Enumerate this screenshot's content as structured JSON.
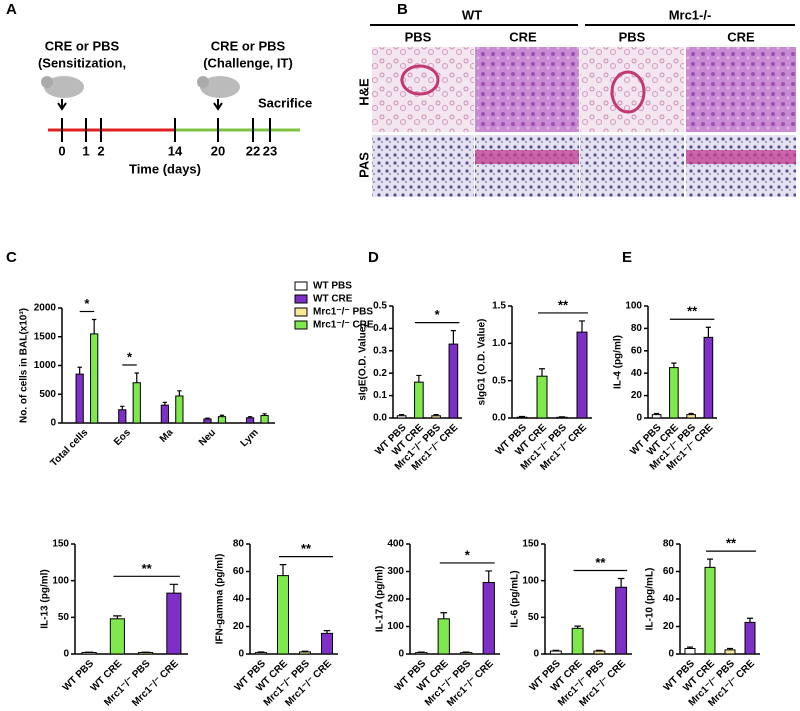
{
  "panel_labels": [
    "A",
    "B",
    "C",
    "D",
    "E"
  ],
  "timeline": {
    "labels": [
      "CRE or PBS",
      "(Sensitization,",
      "CRE or PBS",
      "(Challenge, IT)",
      "Sacrifice"
    ],
    "days": [
      0,
      1,
      2,
      14,
      20,
      22,
      23
    ],
    "xlabel": "Time (days)"
  },
  "histology": {
    "groups": [
      "WT",
      "Mrc1-/-"
    ],
    "treatments": [
      "PBS",
      "CRE",
      "PBS",
      "CRE"
    ],
    "stains": [
      "H&E",
      "PAS"
    ]
  },
  "chart_data": [
    {
      "type": "grouped-bar",
      "ylabel": "No. of cells in BAL(x10³)",
      "categories": [
        "Total cells",
        "Eos",
        "Ma",
        "Neu",
        "Lym"
      ],
      "series": [
        {
          "name": "WT PBS",
          "color": "#ffffff",
          "values": [
            0,
            0,
            0,
            0,
            0
          ],
          "errors": [
            0,
            0,
            0,
            0,
            0
          ]
        },
        {
          "name": "WT CRE",
          "color": "#7d2fc6",
          "values": [
            850,
            230,
            310,
            70,
            90
          ],
          "errors": [
            120,
            60,
            50,
            15,
            20
          ]
        },
        {
          "name": "Mrc1⁻/⁻ PBS",
          "color": "#f7e89a",
          "values": [
            0,
            0,
            0,
            0,
            0
          ],
          "errors": [
            0,
            0,
            0,
            0,
            0
          ]
        },
        {
          "name": "Mrc1⁻/⁻ CRE",
          "color": "#7ee84c",
          "values": [
            1550,
            700,
            470,
            110,
            130
          ],
          "errors": [
            250,
            170,
            90,
            25,
            30
          ]
        }
      ],
      "ylim": [
        0,
        2000
      ],
      "yticks": [
        0,
        500,
        1000,
        1500,
        2000
      ],
      "annotations": [
        "*",
        "*"
      ]
    },
    {
      "type": "bar",
      "ylabel": "sIgE(O.D. Value)",
      "categories": [
        "WT PBS",
        "WT CRE",
        "Mrc1⁻/⁻ PBS",
        "Mrc1⁻/⁻ CRE"
      ],
      "colors": [
        "#ffffff",
        "#7ee84c",
        "#f7e89a",
        "#7d2fc6"
      ],
      "values": [
        0.01,
        0.16,
        0.01,
        0.33
      ],
      "errors": [
        0.005,
        0.03,
        0.005,
        0.06
      ],
      "ylim": [
        0,
        0.5
      ],
      "yticks": [
        {
          "value": 0,
          "label": "0.0"
        },
        0.1,
        0.2,
        0.3,
        0.4,
        0.5
      ],
      "annotations": [
        "*"
      ]
    },
    {
      "type": "bar",
      "ylabel": "sIgG1 (O.D. Value)",
      "categories": [
        "WT PBS",
        "WT CRE",
        "Mrc1⁻/⁻ PBS",
        "Mrc1⁻/⁻ CRE"
      ],
      "colors": [
        "#ffffff",
        "#7ee84c",
        "#f7e89a",
        "#7d2fc6"
      ],
      "values": [
        0.01,
        0.56,
        0.01,
        1.15
      ],
      "errors": [
        0.01,
        0.1,
        0.005,
        0.15
      ],
      "ylim": [
        0,
        1.5
      ],
      "yticks": [
        {
          "value": 0,
          "label": "0.0"
        },
        0.5,
        {
          "value": 1,
          "label": "1.0"
        },
        1.5
      ],
      "annotations": [
        "**"
      ]
    },
    {
      "type": "bar",
      "ylabel": "IL-4 (pg/ml)",
      "categories": [
        "WT PBS",
        "WT CRE",
        "Mrc1⁻/⁻ PBS",
        "Mrc1⁻/⁻ CRE"
      ],
      "colors": [
        "#ffffff",
        "#7ee84c",
        "#f7e89a",
        "#7d2fc6"
      ],
      "values": [
        3,
        45,
        3,
        72
      ],
      "errors": [
        1,
        4,
        1,
        9
      ],
      "ylim": [
        0,
        100
      ],
      "yticks": [
        0,
        20,
        40,
        60,
        80,
        100
      ],
      "annotations": [
        "**"
      ]
    },
    {
      "type": "bar",
      "ylabel": "IL-13 (pg/ml)",
      "categories": [
        "WT PBS",
        "WT CRE",
        "Mrc1⁻/⁻ PBS",
        "Mrc1⁻/⁻ CRE"
      ],
      "colors": [
        "#ffffff",
        "#7ee84c",
        "#f7e89a",
        "#7d2fc6"
      ],
      "values": [
        2,
        48,
        2,
        83
      ],
      "errors": [
        0.5,
        4,
        0.5,
        12
      ],
      "ylim": [
        0,
        150
      ],
      "yticks": [
        0,
        50,
        100,
        150
      ],
      "annotations": [
        "**"
      ]
    },
    {
      "type": "bar",
      "ylabel": "IFN-gamma (pg/ml)",
      "categories": [
        "WT PBS",
        "WT CRE",
        "Mrc1⁻/⁻ PBS",
        "Mrc1⁻/⁻ CRE"
      ],
      "colors": [
        "#ffffff",
        "#7ee84c",
        "#f7e89a",
        "#7d2fc6"
      ],
      "values": [
        1,
        57,
        1.5,
        15
      ],
      "errors": [
        0.5,
        8,
        0.5,
        2
      ],
      "ylim": [
        0,
        80
      ],
      "yticks": [
        0,
        20,
        40,
        60,
        80
      ],
      "annotations": [
        "**"
      ]
    },
    {
      "type": "bar",
      "ylabel": "IL-17A (pg/ml)",
      "categories": [
        "WT PBS",
        "WT CRE",
        "Mrc1⁻/⁻ PBS",
        "Mrc1⁻/⁻ CRE"
      ],
      "colors": [
        "#ffffff",
        "#7ee84c",
        "#f7e89a",
        "#7d2fc6"
      ],
      "values": [
        5,
        128,
        5,
        260
      ],
      "errors": [
        2,
        22,
        2,
        42
      ],
      "ylim": [
        0,
        400
      ],
      "yticks": [
        0,
        100,
        200,
        300,
        400
      ],
      "annotations": [
        "*"
      ]
    },
    {
      "type": "bar",
      "ylabel": "IL-6 (pg/mL)",
      "categories": [
        "WT PBS",
        "WT CRE",
        "Mrc1⁻/⁻ PBS",
        "Mrc1⁻/⁻ CRE"
      ],
      "colors": [
        "#ffffff",
        "#7ee84c",
        "#f7e89a",
        "#7d2fc6"
      ],
      "values": [
        4,
        35,
        4,
        91
      ],
      "errors": [
        1,
        3,
        1,
        12
      ],
      "ylim": [
        0,
        150
      ],
      "yticks": [
        0,
        50,
        100,
        150
      ],
      "annotations": [
        "**"
      ]
    },
    {
      "type": "bar",
      "ylabel": "IL-10 (pg/mL)",
      "categories": [
        "WT PBS",
        "WT CRE",
        "Mrc1⁻/⁻ PBS",
        "Mrc1⁻/⁻ CRE"
      ],
      "colors": [
        "#ffffff",
        "#7ee84c",
        "#f7e89a",
        "#7d2fc6"
      ],
      "values": [
        4,
        63,
        3,
        23
      ],
      "errors": [
        1,
        6,
        1,
        3
      ],
      "ylim": [
        0,
        80
      ],
      "yticks": [
        0,
        20,
        40,
        60,
        80
      ],
      "annotations": [
        "**"
      ]
    }
  ]
}
